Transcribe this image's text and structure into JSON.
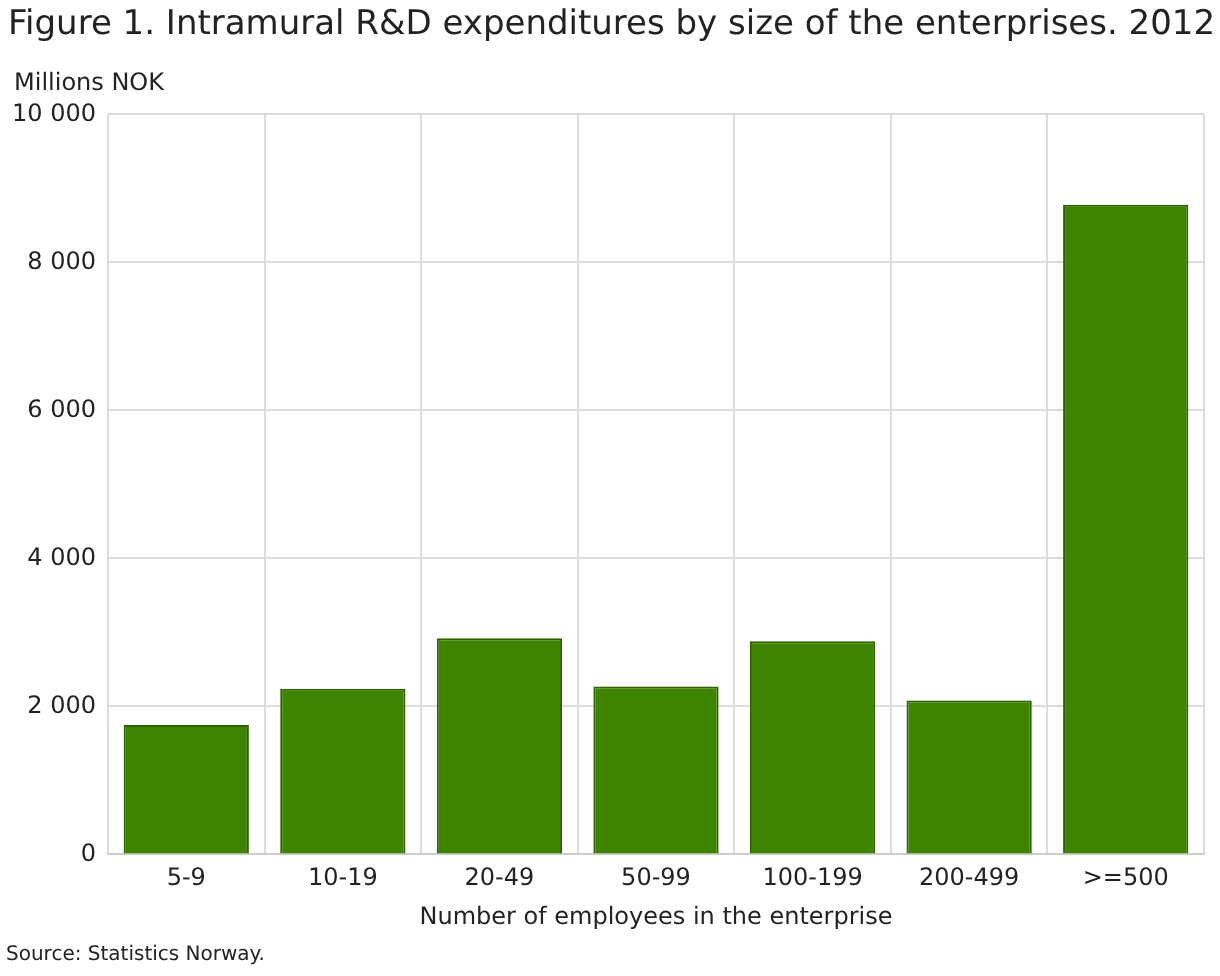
{
  "chart_data": {
    "type": "bar",
    "title": "Figure 1. Intramural R&D expenditures by size of the enterprises. 2012",
    "ylabel": "Millions NOK",
    "xlabel": "Number of employees in the enterprise",
    "annotations": [
      "Source: Statistics Norway."
    ],
    "categories": [
      "5-9",
      "10-19",
      "20-49",
      "50-99",
      "100-199",
      "200-499",
      ">=500"
    ],
    "values": [
      1750,
      2240,
      2920,
      2270,
      2880,
      2080,
      8780
    ],
    "color": "#3f8400",
    "ylim": [
      0,
      10000
    ],
    "yticks": [
      {
        "value": 0,
        "label": "0"
      },
      {
        "value": 2000,
        "label": "2 000"
      },
      {
        "value": 4000,
        "label": "4 000"
      },
      {
        "value": 6000,
        "label": "6 000"
      },
      {
        "value": 8000,
        "label": "8 000"
      },
      {
        "value": 10000,
        "label": "10 000"
      }
    ],
    "grid": true,
    "legend": false
  }
}
